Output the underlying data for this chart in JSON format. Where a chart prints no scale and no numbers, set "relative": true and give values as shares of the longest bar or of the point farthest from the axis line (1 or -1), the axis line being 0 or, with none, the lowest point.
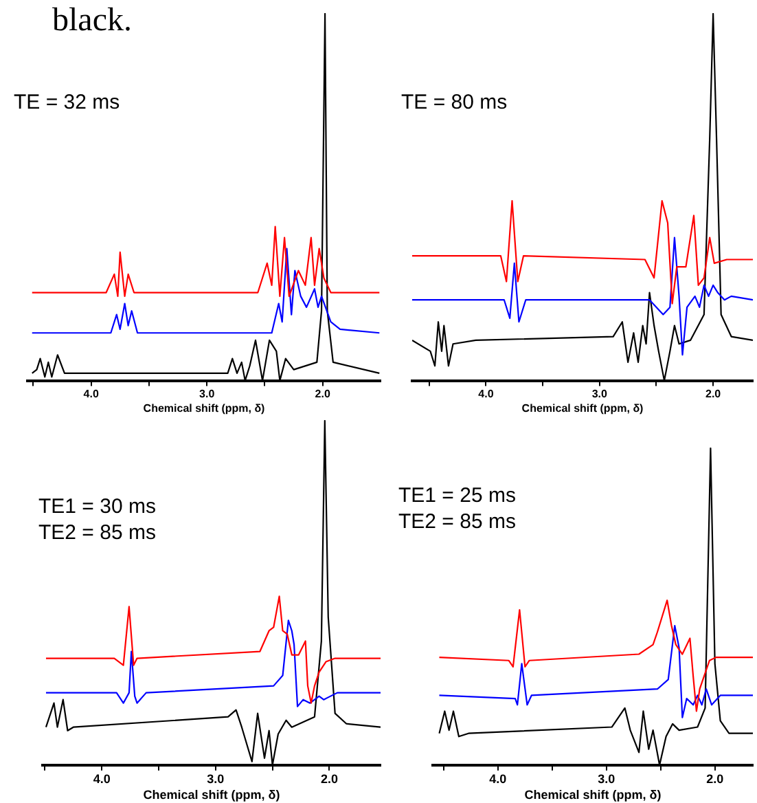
{
  "chart_data": [
    {
      "type": "line",
      "title": "black.",
      "relative": true,
      "xlabel": "Chemical shift (ppm, δ)",
      "annotations": [
        "TE = 32 ms"
      ],
      "xlim": [
        4.55,
        1.5
      ],
      "xticks": [
        {
          "value": 4.5,
          "label": null
        },
        {
          "value": 4.0,
          "label": "4.0"
        },
        {
          "value": 3.5,
          "label": null
        },
        {
          "value": 3.0,
          "label": "3.0"
        },
        {
          "value": 2.5,
          "label": null
        },
        {
          "value": 2.0,
          "label": "2.0"
        }
      ],
      "tick_labels": "x",
      "legend": false,
      "grid": false,
      "marker": "none",
      "line_style": "solid",
      "series": [
        {
          "color": "#ff0000",
          "x": [
            4.51,
            3.87,
            3.8,
            3.77,
            3.75,
            3.71,
            3.68,
            3.63,
            2.56,
            2.48,
            2.44,
            2.41,
            2.37,
            2.33,
            2.29,
            2.21,
            2.15,
            2.1,
            2.07,
            2.03,
            1.99,
            1.93,
            1.51
          ],
          "values": [
            0.24,
            0.24,
            0.29,
            0.23,
            0.35,
            0.23,
            0.29,
            0.24,
            0.24,
            0.32,
            0.26,
            0.42,
            0.23,
            0.39,
            0.23,
            0.3,
            0.26,
            0.39,
            0.26,
            0.36,
            0.28,
            0.24,
            0.24
          ]
        },
        {
          "color": "#0000ff",
          "x": [
            4.51,
            3.83,
            3.78,
            3.75,
            3.71,
            3.68,
            3.65,
            3.6,
            2.44,
            2.38,
            2.35,
            2.31,
            2.27,
            2.24,
            2.19,
            2.14,
            2.07,
            2.04,
            2.01,
            1.93,
            1.85,
            1.51
          ],
          "values": [
            0.13,
            0.13,
            0.18,
            0.14,
            0.21,
            0.15,
            0.19,
            0.13,
            0.13,
            0.21,
            0.16,
            0.36,
            0.18,
            0.3,
            0.23,
            0.2,
            0.25,
            0.2,
            0.23,
            0.16,
            0.14,
            0.13
          ]
        },
        {
          "color": "#000000",
          "x": [
            4.51,
            4.47,
            4.44,
            4.4,
            4.37,
            4.34,
            4.29,
            4.23,
            2.82,
            2.78,
            2.74,
            2.7,
            2.67,
            2.63,
            2.58,
            2.52,
            2.46,
            2.4,
            2.37,
            2.32,
            2.25,
            2.05,
            2.01,
            1.98,
            1.96,
            1.91,
            1.51
          ],
          "values": [
            0.02,
            0.03,
            0.06,
            0.01,
            0.05,
            0.01,
            0.07,
            0.02,
            0.02,
            0.06,
            0.02,
            0.05,
            0,
            0.04,
            0.11,
            0,
            0.11,
            0.08,
            0,
            0.06,
            0.03,
            0.05,
            0.19,
            1,
            0.19,
            0.05,
            0.02
          ]
        }
      ]
    },
    {
      "type": "line",
      "relative": true,
      "xlabel": "Chemical shift (ppm, δ)",
      "annotations": [
        "TE = 80 ms"
      ],
      "xlim": [
        4.65,
        1.65
      ],
      "xticks": [
        {
          "value": 4.5,
          "label": null
        },
        {
          "value": 4.0,
          "label": "4.0"
        },
        {
          "value": 3.5,
          "label": null
        },
        {
          "value": 3.0,
          "label": "3.0"
        },
        {
          "value": 2.5,
          "label": null
        },
        {
          "value": 2.0,
          "label": "2.0"
        }
      ],
      "tick_labels": "x",
      "legend": false,
      "grid": false,
      "marker": "none",
      "line_style": "solid",
      "series": [
        {
          "color": "#ff0000",
          "x": [
            4.65,
            3.87,
            3.82,
            3.77,
            3.72,
            3.67,
            2.6,
            2.52,
            2.45,
            2.4,
            2.36,
            2.32,
            2.24,
            2.17,
            2.13,
            2.08,
            2.03,
            1.99,
            1.88,
            1.65
          ],
          "values": [
            0.34,
            0.34,
            0.27,
            0.49,
            0.27,
            0.34,
            0.33,
            0.28,
            0.49,
            0.43,
            0.21,
            0.31,
            0.31,
            0.45,
            0.26,
            0.28,
            0.39,
            0.32,
            0.33,
            0.33
          ]
        },
        {
          "color": "#0000ff",
          "x": [
            4.65,
            3.84,
            3.79,
            3.75,
            3.71,
            3.65,
            2.56,
            2.44,
            2.38,
            2.34,
            2.3,
            2.27,
            2.23,
            2.16,
            2.12,
            2.08,
            2.04,
            2.0,
            1.96,
            1.9,
            1.84,
            1.65
          ],
          "values": [
            0.22,
            0.22,
            0.17,
            0.32,
            0.16,
            0.22,
            0.22,
            0.18,
            0.2,
            0.39,
            0.23,
            0.07,
            0.2,
            0.23,
            0.2,
            0.26,
            0.23,
            0.26,
            0.24,
            0.22,
            0.23,
            0.22
          ]
        },
        {
          "color": "#000000",
          "x": [
            4.65,
            4.49,
            4.45,
            4.42,
            4.39,
            4.37,
            4.33,
            4.29,
            4.09,
            2.88,
            2.8,
            2.75,
            2.7,
            2.66,
            2.62,
            2.59,
            2.56,
            2.52,
            2.48,
            2.43,
            2.38,
            2.34,
            2.3,
            2.2,
            2.08,
            2.03,
            2.0,
            1.97,
            1.93,
            1.84,
            1.65
          ],
          "values": [
            0.11,
            0.08,
            0.04,
            0.16,
            0.08,
            0.15,
            0.04,
            0.1,
            0.11,
            0.12,
            0.16,
            0.05,
            0.13,
            0.05,
            0.15,
            0.1,
            0.24,
            0.15,
            0.08,
            0,
            0.08,
            0.15,
            0.1,
            0.11,
            0.18,
            0.66,
            1,
            0.66,
            0.18,
            0.12,
            0.11
          ]
        }
      ]
    },
    {
      "type": "line",
      "relative": true,
      "xlabel": "Chemical shift (ppm, δ)",
      "annotations": [
        "TE1 = 30 ms",
        "TE2 = 85 ms"
      ],
      "xlim": [
        4.52,
        1.55
      ],
      "xticks": [
        {
          "value": 4.5,
          "label": null
        },
        {
          "value": 4.0,
          "label": "4.0"
        },
        {
          "value": 3.5,
          "label": null
        },
        {
          "value": 3.0,
          "label": "3.0"
        },
        {
          "value": 2.5,
          "label": null
        },
        {
          "value": 2.0,
          "label": "2.0"
        }
      ],
      "tick_labels": "x",
      "legend": false,
      "grid": false,
      "marker": "none",
      "line_style": "solid",
      "series": [
        {
          "color": "#ff0000",
          "x": [
            4.49,
            3.89,
            3.81,
            3.76,
            3.72,
            3.69,
            2.61,
            2.53,
            2.49,
            2.44,
            2.41,
            2.37,
            2.33,
            2.27,
            2.21,
            2.19,
            2.16,
            2.13,
            2.09,
            2.03,
            1.95,
            1.55
          ],
          "values": [
            0.31,
            0.31,
            0.29,
            0.46,
            0.29,
            0.31,
            0.33,
            0.39,
            0.4,
            0.49,
            0.39,
            0.38,
            0.32,
            0.32,
            0.36,
            0.23,
            0.18,
            0.23,
            0.27,
            0.3,
            0.31,
            0.31
          ]
        },
        {
          "color": "#0000ff",
          "x": [
            4.49,
            3.87,
            3.81,
            3.76,
            3.74,
            3.71,
            3.69,
            3.61,
            2.49,
            2.41,
            2.36,
            2.33,
            2.31,
            2.28,
            2.23,
            2.17,
            2.09,
            2.05,
            1.99,
            1.93,
            1.55
          ],
          "values": [
            0.21,
            0.21,
            0.18,
            0.21,
            0.33,
            0.2,
            0.18,
            0.21,
            0.23,
            0.26,
            0.42,
            0.39,
            0.35,
            0.17,
            0.19,
            0.18,
            0.2,
            0.19,
            0.2,
            0.21,
            0.21
          ]
        },
        {
          "color": "#000000",
          "x": [
            4.49,
            4.42,
            4.39,
            4.34,
            4.3,
            4.25,
            2.89,
            2.82,
            2.77,
            2.68,
            2.63,
            2.57,
            2.53,
            2.5,
            2.45,
            2.38,
            2.33,
            2.13,
            2.07,
            2.04,
            2.01,
            1.95,
            1.85,
            1.55
          ],
          "values": [
            0.11,
            0.18,
            0.11,
            0.19,
            0.1,
            0.11,
            0.14,
            0.16,
            0.11,
            0.01,
            0.15,
            0.02,
            0.1,
            0,
            0.09,
            0.13,
            0.11,
            0.14,
            0.36,
            1,
            0.43,
            0.15,
            0.12,
            0.11
          ]
        }
      ]
    },
    {
      "type": "line",
      "relative": true,
      "xlabel": "Chemical shift (ppm, δ)",
      "annotations": [
        "TE1 = 25 ms",
        "TE2 = 85 ms"
      ],
      "xlim": [
        4.6,
        1.65
      ],
      "xticks": [
        {
          "value": 4.5,
          "label": null
        },
        {
          "value": 4.0,
          "label": "4.0"
        },
        {
          "value": 3.5,
          "label": null
        },
        {
          "value": 3.0,
          "label": "3.0"
        },
        {
          "value": 2.5,
          "label": null
        },
        {
          "value": 2.0,
          "label": "2.0"
        }
      ],
      "tick_labels": "x",
      "legend": false,
      "grid": false,
      "marker": "none",
      "line_style": "solid",
      "series": [
        {
          "color": "#ff0000",
          "x": [
            4.54,
            3.9,
            3.86,
            3.8,
            3.75,
            3.71,
            2.7,
            2.57,
            2.53,
            2.44,
            2.4,
            2.36,
            2.3,
            2.23,
            2.2,
            2.17,
            2.14,
            2.09,
            2.05,
            1.99,
            1.65
          ],
          "values": [
            0.34,
            0.33,
            0.31,
            0.49,
            0.31,
            0.33,
            0.35,
            0.38,
            0.42,
            0.52,
            0.44,
            0.38,
            0.35,
            0.4,
            0.28,
            0.17,
            0.24,
            0.29,
            0.33,
            0.34,
            0.34
          ]
        },
        {
          "color": "#0000ff",
          "x": [
            4.54,
            3.84,
            3.82,
            3.78,
            3.73,
            3.69,
            2.53,
            2.43,
            2.37,
            2.33,
            2.3,
            2.26,
            2.2,
            2.16,
            2.12,
            2.08,
            2.03,
            1.95,
            1.65
          ],
          "values": [
            0.22,
            0.21,
            0.19,
            0.32,
            0.19,
            0.22,
            0.24,
            0.27,
            0.44,
            0.37,
            0.15,
            0.21,
            0.19,
            0.22,
            0.19,
            0.24,
            0.19,
            0.22,
            0.22
          ]
        },
        {
          "color": "#000000",
          "x": [
            4.54,
            4.49,
            4.45,
            4.41,
            4.36,
            4.27,
            2.95,
            2.83,
            2.78,
            2.7,
            2.66,
            2.61,
            2.57,
            2.51,
            2.45,
            2.39,
            2.33,
            2.16,
            2.09,
            2.04,
            2.0,
            1.95,
            1.87,
            1.65
          ],
          "values": [
            0.1,
            0.17,
            0.11,
            0.17,
            0.09,
            0.1,
            0.12,
            0.18,
            0.11,
            0.04,
            0.17,
            0.05,
            0.11,
            0,
            0.09,
            0.13,
            0.11,
            0.12,
            0.18,
            1,
            0.32,
            0.14,
            0.1,
            0.1
          ]
        }
      ]
    }
  ]
}
